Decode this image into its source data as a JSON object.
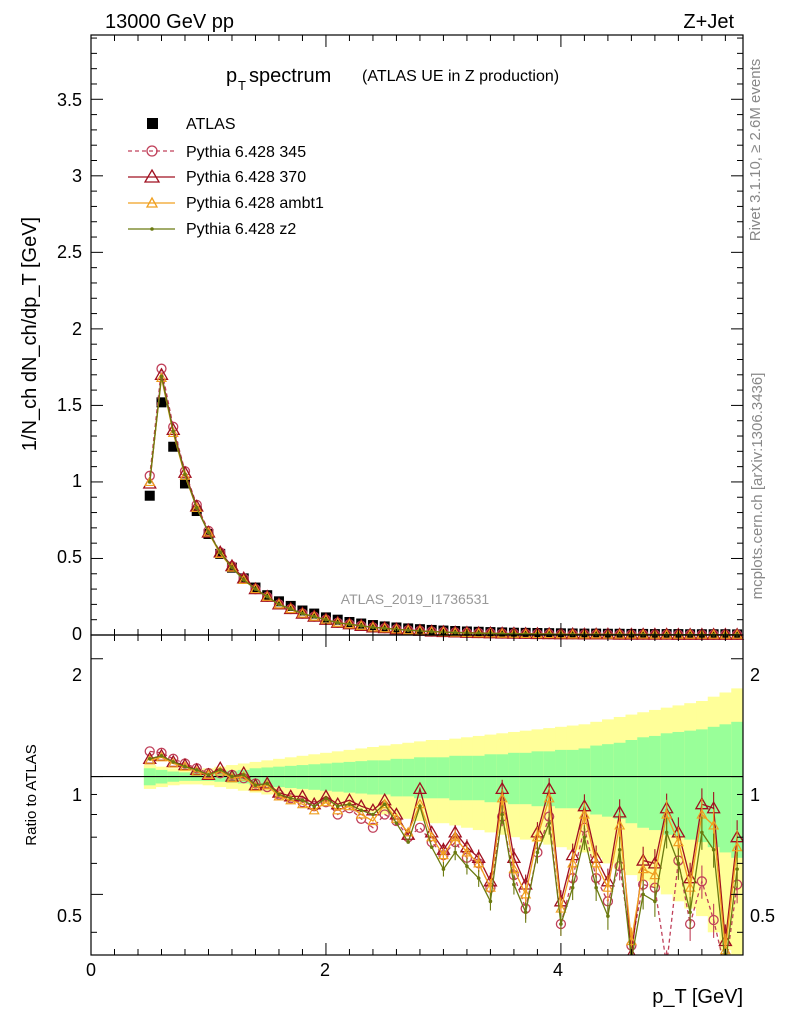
{
  "header": {
    "energy_label": "13000 GeV pp",
    "process_label": "Z+Jet"
  },
  "title": {
    "main": "p",
    "sub": "T",
    "rest": " spectrum",
    "note": "(ATLAS UE in Z production)"
  },
  "side_labels": {
    "rivet": "Rivet 3.1.10, ≥ 2.6M events",
    "mcplots": "mcplots.cern.ch [arXiv:1306.3436]"
  },
  "watermark": "ATLAS_2019_I1736531",
  "axes": {
    "y_main_label": "1/N_ch dN_ch/dp_T [GeV]",
    "y_ratio_label": "Ratio to ATLAS",
    "x_label": "p_T [GeV]",
    "x_ticks": [
      "0",
      "2",
      "4"
    ],
    "y_main_ticks": [
      "0",
      "0.5",
      "1",
      "1.5",
      "2",
      "2.5",
      "3",
      "3.5"
    ],
    "y_ratio_ticks": [
      "0.5",
      "1",
      "2"
    ]
  },
  "legend": [
    {
      "label": "ATLAS",
      "color": "#000000",
      "marker": "square"
    },
    {
      "label": "Pythia 6.428 345",
      "color": "#c0405a",
      "marker": "open-circle",
      "dash": true
    },
    {
      "label": "Pythia 6.428 370",
      "color": "#a01020",
      "marker": "open-triangle"
    },
    {
      "label": "Pythia 6.428 ambt1",
      "color": "#f0a020",
      "marker": "open-triangle-small"
    },
    {
      "label": "Pythia 6.428 z2",
      "color": "#6b7a10",
      "marker": "dot"
    }
  ],
  "chart_data": {
    "type": "line",
    "xlim": [
      0,
      5.55
    ],
    "ylim_main": [
      0,
      3.92
    ],
    "ylim_ratio": [
      0.35,
      2.3
    ],
    "ratio_log_scale": true,
    "x": [
      0.5,
      0.6,
      0.7,
      0.8,
      0.9,
      1.0,
      1.1,
      1.2,
      1.3,
      1.4,
      1.5,
      1.6,
      1.7,
      1.8,
      1.9,
      2.0,
      2.1,
      2.2,
      2.3,
      2.4,
      2.5,
      2.6,
      2.7,
      2.8,
      2.9,
      3.0,
      3.1,
      3.2,
      3.3,
      3.4,
      3.5,
      3.6,
      3.7,
      3.8,
      3.9,
      4.0,
      4.1,
      4.2,
      4.3,
      4.4,
      4.5,
      4.6,
      4.7,
      4.8,
      4.9,
      5.0,
      5.1,
      5.2,
      5.3,
      5.4,
      5.5
    ],
    "series": [
      {
        "name": "ATLAS",
        "values": [
          0.91,
          1.52,
          1.23,
          0.99,
          0.81,
          0.66,
          0.53,
          0.44,
          0.37,
          0.31,
          0.26,
          0.22,
          0.19,
          0.16,
          0.14,
          0.115,
          0.1,
          0.085,
          0.075,
          0.065,
          0.056,
          0.049,
          0.043,
          0.038,
          0.033,
          0.029,
          0.026,
          0.023,
          0.021,
          0.019,
          0.017,
          0.015,
          0.014,
          0.013,
          0.012,
          0.011,
          0.01,
          0.009,
          0.009,
          0.008,
          0.008,
          0.007,
          0.007,
          0.006,
          0.006,
          0.006,
          0.005,
          0.005,
          0.005,
          0.005,
          0.004
        ]
      },
      {
        "name": "Pythia 6.428 345",
        "values": [
          1.04,
          1.74,
          1.36,
          1.07,
          0.85,
          0.68,
          0.54,
          0.45,
          0.37,
          0.3,
          0.25,
          0.2,
          0.17,
          0.14,
          0.12,
          0.1,
          0.08,
          0.07,
          0.06,
          0.05,
          0.045,
          0.038,
          0.032,
          0.028,
          0.023,
          0.02,
          0.017,
          0.015,
          0.013,
          0.012,
          0.01,
          0.009,
          0.008,
          0.007,
          0.006,
          0.005,
          0.005,
          0.004,
          0.004,
          0.004,
          0.003,
          0.003,
          0.003,
          0.003,
          0.003,
          0.002,
          0.002,
          0.002,
          0.002,
          0.002,
          0.002
        ]
      },
      {
        "name": "Pythia 6.428 370",
        "values": [
          0.99,
          1.7,
          1.34,
          1.06,
          0.84,
          0.67,
          0.54,
          0.45,
          0.37,
          0.3,
          0.25,
          0.2,
          0.17,
          0.14,
          0.12,
          0.1,
          0.08,
          0.07,
          0.06,
          0.05,
          0.045,
          0.038,
          0.032,
          0.028,
          0.023,
          0.02,
          0.017,
          0.015,
          0.013,
          0.012,
          0.01,
          0.009,
          0.008,
          0.007,
          0.006,
          0.005,
          0.005,
          0.004,
          0.004,
          0.004,
          0.003,
          0.003,
          0.003,
          0.003,
          0.003,
          0.002,
          0.002,
          0.002,
          0.002,
          0.002,
          0.002
        ]
      },
      {
        "name": "Pythia 6.428 ambt1",
        "values": [
          1.0,
          1.68,
          1.32,
          1.04,
          0.83,
          0.67,
          0.53,
          0.44,
          0.36,
          0.3,
          0.25,
          0.2,
          0.17,
          0.14,
          0.12,
          0.1,
          0.08,
          0.07,
          0.06,
          0.05,
          0.044,
          0.037,
          0.031,
          0.027,
          0.022,
          0.019,
          0.016,
          0.014,
          0.012,
          0.011,
          0.009,
          0.008,
          0.007,
          0.006,
          0.006,
          0.005,
          0.004,
          0.004,
          0.004,
          0.003,
          0.003,
          0.003,
          0.003,
          0.002,
          0.002,
          0.002,
          0.002,
          0.002,
          0.002,
          0.002,
          0.002
        ]
      },
      {
        "name": "Pythia 6.428 z2",
        "values": [
          1.0,
          1.69,
          1.33,
          1.05,
          0.83,
          0.67,
          0.54,
          0.44,
          0.36,
          0.3,
          0.25,
          0.2,
          0.17,
          0.14,
          0.12,
          0.1,
          0.08,
          0.07,
          0.06,
          0.05,
          0.044,
          0.037,
          0.031,
          0.027,
          0.022,
          0.019,
          0.016,
          0.014,
          0.012,
          0.011,
          0.009,
          0.008,
          0.007,
          0.006,
          0.006,
          0.005,
          0.004,
          0.004,
          0.004,
          0.003,
          0.003,
          0.003,
          0.003,
          0.002,
          0.002,
          0.002,
          0.002,
          0.002,
          0.002,
          0.002,
          0.002
        ]
      }
    ],
    "ratios": [
      {
        "name": "Pythia 6.428 345",
        "values": [
          1.16,
          1.15,
          1.11,
          1.08,
          1.05,
          1.02,
          1.02,
          1.01,
          0.99,
          0.96,
          0.94,
          0.9,
          0.88,
          0.86,
          0.84,
          0.86,
          0.8,
          0.83,
          0.78,
          0.74,
          0.8,
          0.77,
          0.7,
          0.74,
          0.68,
          0.63,
          0.68,
          0.62,
          0.6,
          0.52,
          0.79,
          0.56,
          0.46,
          0.64,
          0.79,
          0.42,
          0.55,
          0.74,
          0.55,
          0.48,
          0.59,
          0.37,
          0.53,
          0.52,
          0.33,
          0.61,
          0.42,
          0.54,
          0.43,
          0.32,
          0.53
        ]
      },
      {
        "name": "Pythia 6.428 370",
        "values": [
          1.11,
          1.13,
          1.09,
          1.07,
          1.04,
          1.01,
          1.05,
          1.0,
          1.02,
          0.95,
          0.96,
          0.91,
          0.89,
          0.89,
          0.85,
          0.89,
          0.85,
          0.87,
          0.84,
          0.82,
          0.87,
          0.8,
          0.71,
          0.93,
          0.72,
          0.65,
          0.72,
          0.66,
          0.62,
          0.54,
          0.93,
          0.62,
          0.53,
          0.72,
          0.93,
          0.48,
          0.63,
          0.84,
          0.62,
          0.54,
          0.81,
          0.35,
          0.61,
          0.6,
          0.83,
          0.72,
          0.55,
          0.85,
          0.83,
          0.38,
          0.7
        ]
      },
      {
        "name": "Pythia 6.428 ambt1",
        "values": [
          1.1,
          1.12,
          1.08,
          1.06,
          1.03,
          1.01,
          1.03,
          0.99,
          1.0,
          0.94,
          0.95,
          0.89,
          0.87,
          0.85,
          0.82,
          0.86,
          0.82,
          0.84,
          0.8,
          0.77,
          0.85,
          0.78,
          0.72,
          0.85,
          0.7,
          0.63,
          0.7,
          0.64,
          0.6,
          0.52,
          0.88,
          0.58,
          0.5,
          0.7,
          0.88,
          0.46,
          0.6,
          0.8,
          0.6,
          0.52,
          0.75,
          0.38,
          0.58,
          0.56,
          0.8,
          0.68,
          0.52,
          0.8,
          0.75,
          0.36,
          0.66
        ]
      },
      {
        "name": "Pythia 6.428 z2",
        "values": [
          1.11,
          1.13,
          1.09,
          1.06,
          1.04,
          1.01,
          1.04,
          1.0,
          1.01,
          0.95,
          0.96,
          0.9,
          0.88,
          0.87,
          0.84,
          0.88,
          0.84,
          0.85,
          0.82,
          0.8,
          0.85,
          0.76,
          0.68,
          0.84,
          0.66,
          0.58,
          0.64,
          0.59,
          0.55,
          0.48,
          0.8,
          0.53,
          0.45,
          0.64,
          0.76,
          0.42,
          0.52,
          0.7,
          0.52,
          0.44,
          0.65,
          0.34,
          0.5,
          0.48,
          0.72,
          0.6,
          0.45,
          0.72,
          0.65,
          0.33,
          0.58
        ]
      }
    ],
    "band_inner_halfwidth": [
      0.05,
      0.04,
      0.03,
      0.025,
      0.025,
      0.025,
      0.03,
      0.035,
      0.04,
      0.05,
      0.055,
      0.06,
      0.065,
      0.07,
      0.075,
      0.08,
      0.085,
      0.09,
      0.095,
      0.1,
      0.1,
      0.11,
      0.11,
      0.12,
      0.12,
      0.12,
      0.13,
      0.13,
      0.13,
      0.14,
      0.14,
      0.15,
      0.15,
      0.16,
      0.16,
      0.17,
      0.17,
      0.18,
      0.2,
      0.21,
      0.22,
      0.24,
      0.26,
      0.27,
      0.29,
      0.3,
      0.31,
      0.32,
      0.34,
      0.36,
      0.38
    ],
    "band_outer_halfwidth": [
      0.07,
      0.06,
      0.05,
      0.045,
      0.045,
      0.05,
      0.06,
      0.07,
      0.08,
      0.09,
      0.1,
      0.11,
      0.12,
      0.13,
      0.14,
      0.15,
      0.16,
      0.17,
      0.18,
      0.19,
      0.2,
      0.21,
      0.22,
      0.23,
      0.24,
      0.24,
      0.25,
      0.26,
      0.27,
      0.28,
      0.29,
      0.3,
      0.31,
      0.32,
      0.33,
      0.34,
      0.35,
      0.36,
      0.38,
      0.4,
      0.42,
      0.44,
      0.46,
      0.48,
      0.5,
      0.52,
      0.54,
      0.56,
      0.6,
      0.64,
      0.68
    ]
  }
}
